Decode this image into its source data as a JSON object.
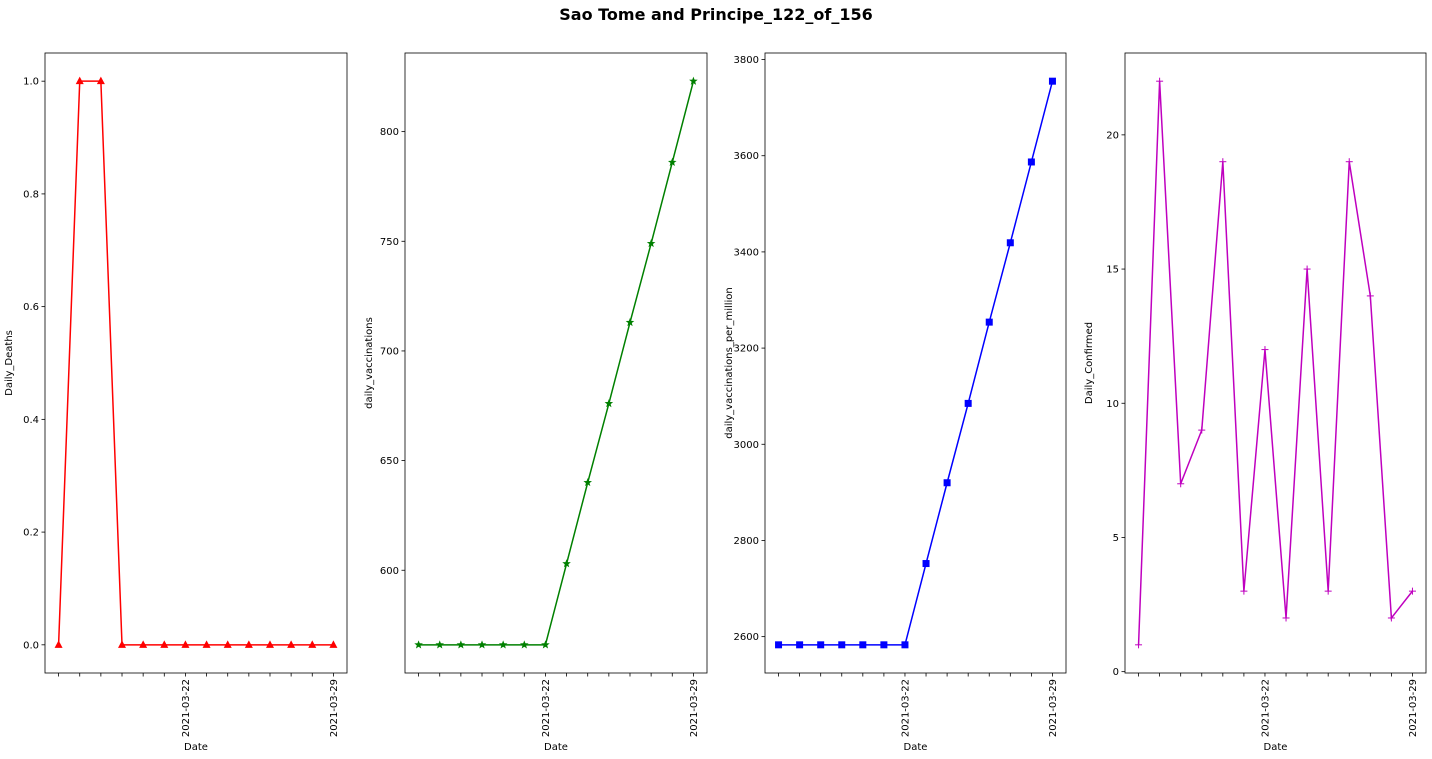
{
  "figure": {
    "title": "Sao Tome and Principe_122_of_156"
  },
  "chart_data": [
    {
      "type": "line",
      "x": [
        "2021-03-16",
        "2021-03-17",
        "2021-03-18",
        "2021-03-19",
        "2021-03-20",
        "2021-03-21",
        "2021-03-22",
        "2021-03-23",
        "2021-03-24",
        "2021-03-25",
        "2021-03-26",
        "2021-03-27",
        "2021-03-28",
        "2021-03-29"
      ],
      "series": [
        {
          "values": [
            0,
            1,
            1,
            0,
            0,
            0,
            0,
            0,
            0,
            0,
            0,
            0,
            0,
            0
          ],
          "color": "#ff0000",
          "marker": "triangle"
        }
      ],
      "xlabel": "Date",
      "ylabel": "Daily_Deaths",
      "xtick_labels": [
        "2021-03-22",
        "2021-03-29"
      ],
      "ylim": [
        -0.05,
        1.05
      ],
      "yticks": [
        0.0,
        0.2,
        0.4,
        0.6,
        0.8,
        1.0
      ],
      "ytick_labels": [
        "0.0",
        "0.2",
        "0.4",
        "0.6",
        "0.8",
        "1.0"
      ],
      "grid": false
    },
    {
      "type": "line",
      "x": [
        "2021-03-16",
        "2021-03-17",
        "2021-03-18",
        "2021-03-19",
        "2021-03-20",
        "2021-03-21",
        "2021-03-22",
        "2021-03-23",
        "2021-03-24",
        "2021-03-25",
        "2021-03-26",
        "2021-03-27",
        "2021-03-28",
        "2021-03-29"
      ],
      "series": [
        {
          "values": [
            566,
            566,
            566,
            566,
            566,
            566,
            566,
            603,
            640,
            676,
            713,
            749,
            786,
            823
          ],
          "color": "#008000",
          "marker": "star"
        }
      ],
      "xlabel": "Date",
      "ylabel": "daily_vaccinations",
      "xtick_labels": [
        "2021-03-22",
        "2021-03-29"
      ],
      "ylim": [
        553.15,
        835.85
      ],
      "yticks": [
        600,
        650,
        700,
        750,
        800
      ],
      "ytick_labels": [
        "600",
        "650",
        "700",
        "750",
        "800"
      ],
      "grid": false
    },
    {
      "type": "line",
      "x": [
        "2021-03-16",
        "2021-03-17",
        "2021-03-18",
        "2021-03-19",
        "2021-03-20",
        "2021-03-21",
        "2021-03-22",
        "2021-03-23",
        "2021-03-24",
        "2021-03-25",
        "2021-03-26",
        "2021-03-27",
        "2021-03-28",
        "2021-03-29"
      ],
      "series": [
        {
          "values": [
            2583,
            2583,
            2583,
            2583,
            2583,
            2583,
            2583,
            2752,
            2920,
            3085,
            3254,
            3419,
            3587,
            3755
          ],
          "color": "#0000ff",
          "marker": "square"
        }
      ],
      "xlabel": "Date",
      "ylabel": "daily_vaccinations_per_million",
      "xtick_labels": [
        "2021-03-22",
        "2021-03-29"
      ],
      "ylim": [
        2524.4,
        3813.6
      ],
      "yticks": [
        2600,
        2800,
        3000,
        3200,
        3400,
        3600,
        3800
      ],
      "ytick_labels": [
        "2600",
        "2800",
        "3000",
        "3200",
        "3400",
        "3600",
        "3800"
      ],
      "grid": false
    },
    {
      "type": "line",
      "x": [
        "2021-03-16",
        "2021-03-17",
        "2021-03-18",
        "2021-03-19",
        "2021-03-20",
        "2021-03-21",
        "2021-03-22",
        "2021-03-23",
        "2021-03-24",
        "2021-03-25",
        "2021-03-26",
        "2021-03-27",
        "2021-03-28",
        "2021-03-29"
      ],
      "series": [
        {
          "values": [
            1,
            22,
            7,
            9,
            19,
            3,
            12,
            2,
            15,
            3,
            19,
            14,
            2,
            3
          ],
          "color": "#bf00bf",
          "marker": "plus"
        }
      ],
      "xlabel": "Date",
      "ylabel": "Daily_Confirmed",
      "xtick_labels": [
        "2021-03-22",
        "2021-03-29"
      ],
      "ylim": [
        -0.05,
        23.05
      ],
      "yticks": [
        0,
        5,
        10,
        15,
        20
      ],
      "ytick_labels": [
        "0",
        "5",
        "10",
        "15",
        "20"
      ],
      "grid": false
    }
  ]
}
